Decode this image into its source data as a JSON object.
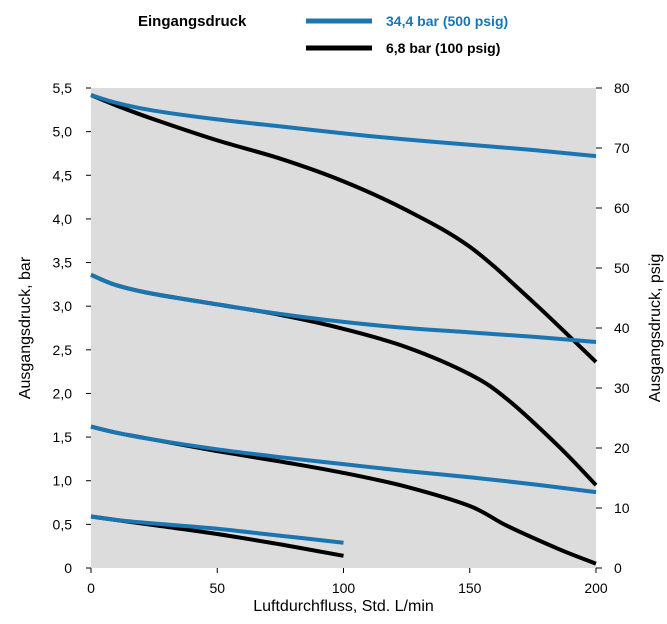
{
  "chart_data": {
    "type": "line",
    "legend_title": "Eingangsdruck",
    "legend_placement": "top",
    "xlabel": "Luftdurchfluss, Std. L/min",
    "ylabel": "Ausgangsdruck, bar",
    "ylabel_right": "Ausgangsdruck, psig",
    "xlim": [
      0,
      200
    ],
    "ylim": [
      0,
      5.5
    ],
    "ylim_right": [
      0,
      80
    ],
    "grid": false,
    "background": "#dcdcdc",
    "x_ticks": [
      "0",
      "50",
      "100",
      "150",
      "200"
    ],
    "y_ticks": [
      "0",
      "0,5",
      "1,0",
      "1,5",
      "2,0",
      "2,5",
      "3,0",
      "3,5",
      "4,0",
      "4,5",
      "5,0",
      "5,5"
    ],
    "y_ticks_right": [
      "0",
      "10",
      "20",
      "30",
      "40",
      "50",
      "60",
      "70",
      "80"
    ],
    "series": [
      {
        "name": "34,4 bar (500 psig)",
        "color": "#1a75b0",
        "curves": [
          {
            "x": [
              0,
              10,
              25,
              50,
              75,
              100,
              125,
              150,
              175,
              200
            ],
            "y": [
              5.42,
              5.33,
              5.24,
              5.14,
              5.06,
              4.98,
              4.91,
              4.85,
              4.79,
              4.72
            ]
          },
          {
            "x": [
              0,
              10,
              25,
              50,
              75,
              100,
              125,
              150,
              175,
              200
            ],
            "y": [
              3.36,
              3.24,
              3.14,
              3.02,
              2.91,
              2.82,
              2.75,
              2.7,
              2.65,
              2.59
            ]
          },
          {
            "x": [
              0,
              10,
              25,
              50,
              75,
              100,
              125,
              150,
              175,
              200
            ],
            "y": [
              1.62,
              1.55,
              1.47,
              1.36,
              1.27,
              1.19,
              1.11,
              1.04,
              0.96,
              0.87
            ]
          },
          {
            "x": [
              0,
              10,
              25,
              50,
              75,
              100
            ],
            "y": [
              0.59,
              0.55,
              0.51,
              0.45,
              0.37,
              0.29
            ]
          }
        ]
      },
      {
        "name": "6,8 bar (100 psig)",
        "color": "#000000",
        "curves": [
          {
            "x": [
              0,
              10,
              25,
              50,
              75,
              100,
              125,
              150,
              175,
              200
            ],
            "y": [
              5.42,
              5.3,
              5.14,
              4.9,
              4.69,
              4.43,
              4.1,
              3.68,
              3.05,
              2.36
            ]
          },
          {
            "x": [
              0,
              10,
              25,
              50,
              75,
              100,
              125,
              150,
              165,
              185,
              200
            ],
            "y": [
              3.36,
              3.24,
              3.14,
              3.02,
              2.9,
              2.74,
              2.53,
              2.22,
              1.93,
              1.4,
              0.95
            ]
          },
          {
            "x": [
              0,
              10,
              25,
              50,
              75,
              100,
              125,
              150,
              165,
              185,
              200
            ],
            "y": [
              1.62,
              1.55,
              1.47,
              1.34,
              1.22,
              1.09,
              0.93,
              0.71,
              0.48,
              0.22,
              0.05
            ]
          },
          {
            "x": [
              0,
              10,
              25,
              50,
              75,
              100
            ],
            "y": [
              0.59,
              0.55,
              0.49,
              0.39,
              0.27,
              0.14
            ]
          }
        ]
      }
    ]
  }
}
